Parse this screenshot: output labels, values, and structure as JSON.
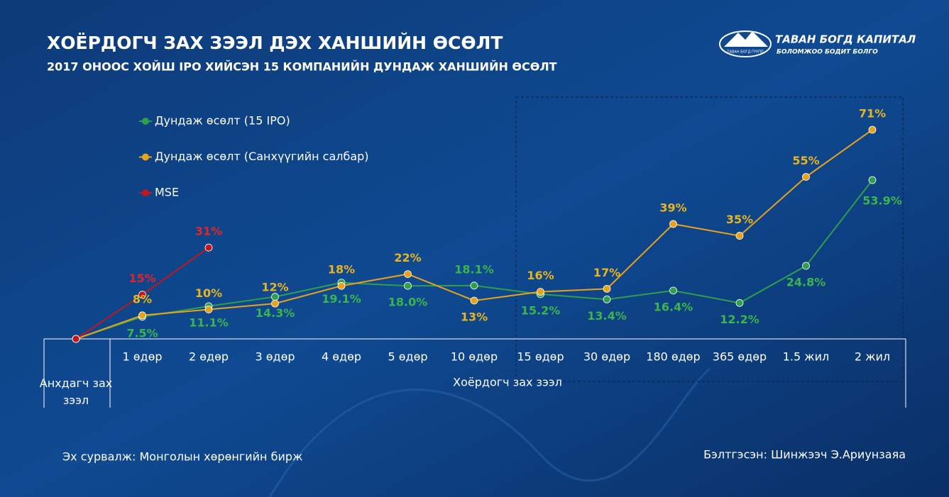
{
  "chart_data": {
    "type": "line",
    "title": "ХОЁРДОГЧ ЗАХ ЗЭЭЛ ДЭХ ХАНШИЙН ӨСӨЛТ",
    "subtitle": "2017 ОНООС ХОЙШ IPO ХИЙСЭН 15 КОМПАНИЙН ДУНДАЖ ХАНШИЙН ӨСӨЛТ",
    "categories": [
      "Анхдагч зах зээл",
      "1 өдөр",
      "2 өдөр",
      "3 өдөр",
      "4 өдөр",
      "5 өдөр",
      "10 өдөр",
      "15 өдөр",
      "30 өдөр",
      "180 өдөр",
      "365 өдөр",
      "1.5 жил",
      "2 жил"
    ],
    "group_label": "Хоёрдогч зах зээл",
    "ylim": [
      0,
      80
    ],
    "series": [
      {
        "name": "Дундаж өсөлт (15 IPO)",
        "color": "#2f9e4d",
        "label_color": "#3cb54c",
        "values": [
          0,
          7.5,
          11.1,
          14.3,
          19.1,
          18.0,
          18.1,
          15.2,
          13.4,
          16.4,
          12.2,
          24.8,
          53.9
        ],
        "value_labels": [
          null,
          "7.5%",
          "11.1%",
          "14.3%",
          "19.1%",
          "18.0%",
          "18.1%",
          "15.2%",
          "13.4%",
          "16.4%",
          "12.2%",
          "24.8%",
          "53.9%"
        ]
      },
      {
        "name": "Дундаж өсөлт (Санхүүгийн салбар)",
        "color": "#e8a31c",
        "label_color": "#e9b41f",
        "values": [
          0,
          8,
          10,
          12,
          18,
          22,
          13,
          16,
          17,
          39,
          35,
          55,
          71
        ],
        "value_labels": [
          null,
          "8%",
          "10%",
          "12%",
          "18%",
          "22%",
          "13%",
          "16%",
          "17%",
          "39%",
          "35%",
          "55%",
          "71%"
        ]
      },
      {
        "name": "MSE",
        "color": "#c4161c",
        "label_color": "#e0262b",
        "values": [
          0,
          15,
          31,
          null,
          null,
          null,
          null,
          null,
          null,
          null,
          null,
          null,
          null
        ],
        "value_labels": [
          null,
          "15%",
          "31%",
          null,
          null,
          null,
          null,
          null,
          null,
          null,
          null,
          null,
          null
        ]
      }
    ],
    "source": "Эх сурвалж: Монголын хөрөнгийн бирж",
    "prepared_by": "Бэлтгэсэн: Шинжээч Э.Ариунзаяа",
    "logo": {
      "name": "ТАВАН БОГД КАПИТАЛ",
      "slogan": "БОЛОМЖОО БОДИТ БОЛГО",
      "group": "ТАВАН БОГД ГРУПП"
    }
  }
}
